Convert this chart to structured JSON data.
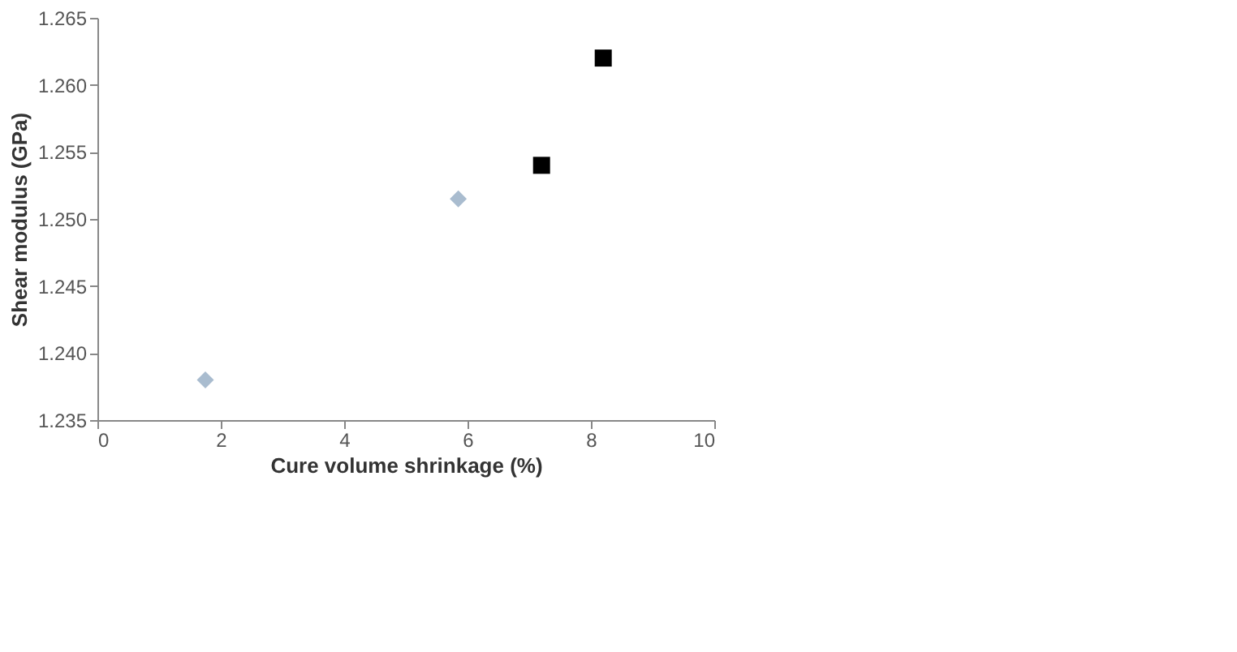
{
  "chart_data": {
    "type": "scatter",
    "xlabel": "Cure volume shrinkage (%)",
    "ylabel": "Shear modulus (GPa)",
    "xlim": [
      0,
      10
    ],
    "xticks": [
      0,
      2,
      4,
      6,
      8,
      10
    ],
    "ylim": [
      1.235,
      1.265
    ],
    "yticks": [
      {
        "value": 1.235,
        "label": "1.235"
      },
      {
        "value": 1.24,
        "label": "1.240"
      },
      {
        "value": 1.245,
        "label": "1.245"
      },
      {
        "value": 1.25,
        "label": "1.250"
      },
      {
        "value": 1.255,
        "label": "1.255"
      },
      {
        "value": 1.26,
        "label": "1.260"
      },
      {
        "value": 1.265,
        "label": "1.265"
      }
    ],
    "grid": false,
    "series": [
      {
        "color": "#a9bccf",
        "marker": "diamond",
        "x": [
          1.75,
          5.85
        ],
        "values": [
          1.238,
          1.2515
        ]
      },
      {
        "color": "#000000",
        "marker": "square",
        "x": [
          7.2,
          8.2
        ],
        "values": [
          1.254,
          1.262
        ]
      }
    ]
  }
}
